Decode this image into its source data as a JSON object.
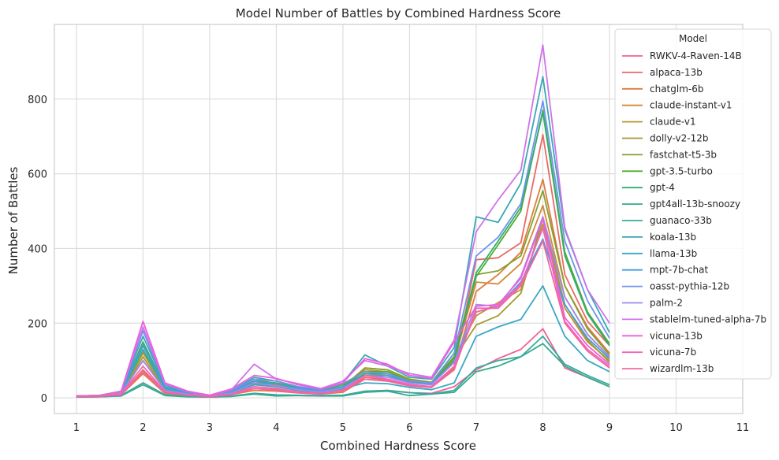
{
  "chart_data": {
    "type": "line",
    "title": "Model Number of Battles by Combined Hardness Score",
    "xlabel": "Combined Hardness Score",
    "ylabel": "Number of Battles",
    "xlim": [
      0.67,
      11.0
    ],
    "ylim": [
      -42,
      1000
    ],
    "xticks": [
      1,
      2,
      3,
      4,
      5,
      6,
      7,
      8,
      9,
      10,
      11
    ],
    "yticks": [
      0,
      200,
      400,
      600,
      800
    ],
    "grid": true,
    "legend": {
      "title": "Model",
      "placement": "top-right"
    },
    "x": [
      1,
      1.33,
      1.67,
      2,
      2.33,
      2.67,
      3,
      3.33,
      3.67,
      4,
      4.33,
      4.67,
      5,
      5.33,
      5.67,
      6,
      6.33,
      6.67,
      7,
      7.33,
      7.67,
      8,
      8.33,
      8.67,
      9
    ],
    "series": [
      {
        "name": "RWKV-4-Raven-14B",
        "color": "#f0628e",
        "values": [
          2,
          3,
          5,
          40,
          8,
          4,
          2,
          4,
          12,
          8,
          6,
          5,
          6,
          18,
          20,
          14,
          12,
          30,
          75,
          105,
          130,
          185,
          80,
          55,
          30
        ]
      },
      {
        "name": "alpaca-13b",
        "color": "#ea6a62",
        "values": [
          3,
          4,
          8,
          75,
          15,
          8,
          4,
          10,
          25,
          22,
          15,
          12,
          18,
          55,
          48,
          35,
          30,
          85,
          370,
          375,
          415,
          705,
          330,
          205,
          140
        ]
      },
      {
        "name": "chatglm-6b",
        "color": "#e07a3c",
        "values": [
          3,
          4,
          8,
          65,
          12,
          7,
          4,
          9,
          20,
          18,
          13,
          10,
          15,
          50,
          45,
          32,
          28,
          80,
          285,
          330,
          390,
          585,
          300,
          190,
          120
        ]
      },
      {
        "name": "claude-instant-v1",
        "color": "#d38933",
        "values": [
          3,
          4,
          10,
          100,
          20,
          10,
          4,
          12,
          35,
          30,
          20,
          15,
          22,
          65,
          60,
          42,
          36,
          100,
          310,
          305,
          360,
          515,
          270,
          170,
          110
        ]
      },
      {
        "name": "claude-v1",
        "color": "#bf9530",
        "values": [
          4,
          5,
          12,
          120,
          25,
          12,
          5,
          15,
          45,
          35,
          22,
          16,
          25,
          75,
          70,
          48,
          40,
          110,
          220,
          255,
          290,
          465,
          240,
          150,
          100
        ]
      },
      {
        "name": "dolly-v2-12b",
        "color": "#a29b2f",
        "values": [
          3,
          4,
          10,
          110,
          22,
          10,
          4,
          12,
          38,
          30,
          20,
          14,
          24,
          80,
          75,
          50,
          40,
          105,
          195,
          220,
          280,
          480,
          250,
          155,
          95
        ]
      },
      {
        "name": "fastchat-t5-3b",
        "color": "#84a12f",
        "values": [
          4,
          5,
          12,
          125,
          25,
          12,
          5,
          15,
          50,
          38,
          25,
          18,
          30,
          80,
          75,
          50,
          42,
          120,
          330,
          340,
          380,
          555,
          300,
          185,
          115
        ]
      },
      {
        "name": "gpt-3.5-turbo",
        "color": "#4fac2f",
        "values": [
          5,
          6,
          15,
          150,
          30,
          14,
          6,
          18,
          45,
          40,
          28,
          20,
          35,
          70,
          70,
          45,
          40,
          110,
          325,
          410,
          500,
          770,
          390,
          230,
          145
        ]
      },
      {
        "name": "gpt-4",
        "color": "#32ae6e",
        "values": [
          5,
          6,
          15,
          140,
          28,
          13,
          5,
          16,
          40,
          38,
          26,
          18,
          30,
          65,
          65,
          42,
          38,
          100,
          335,
          420,
          510,
          765,
          380,
          225,
          140
        ]
      },
      {
        "name": "gpt4all-13b-snoozy",
        "color": "#34ab8c",
        "values": [
          2,
          3,
          5,
          35,
          6,
          3,
          2,
          4,
          10,
          5,
          6,
          5,
          5,
          15,
          18,
          6,
          10,
          15,
          70,
          85,
          110,
          145,
          85,
          55,
          30
        ]
      },
      {
        "name": "guanaco-33b",
        "color": "#36a9a1",
        "values": [
          2,
          3,
          6,
          40,
          8,
          4,
          2,
          5,
          12,
          8,
          7,
          6,
          7,
          18,
          20,
          14,
          10,
          20,
          80,
          100,
          110,
          165,
          90,
          60,
          35
        ]
      },
      {
        "name": "koala-13b",
        "color": "#38a8b3",
        "values": [
          5,
          6,
          18,
          165,
          35,
          15,
          6,
          20,
          55,
          45,
          30,
          22,
          40,
          115,
          85,
          55,
          50,
          135,
          485,
          470,
          575,
          860,
          450,
          290,
          175
        ]
      },
      {
        "name": "llama-13b",
        "color": "#3aa7c4",
        "values": [
          4,
          5,
          12,
          130,
          25,
          12,
          5,
          14,
          35,
          30,
          20,
          15,
          25,
          40,
          38,
          28,
          22,
          40,
          165,
          190,
          210,
          300,
          165,
          100,
          70
        ]
      },
      {
        "name": "mpt-7b-chat",
        "color": "#3e9fe0",
        "values": [
          4,
          5,
          14,
          145,
          28,
          13,
          5,
          16,
          45,
          38,
          25,
          18,
          30,
          60,
          60,
          40,
          36,
          95,
          230,
          245,
          310,
          425,
          250,
          160,
          105
        ]
      },
      {
        "name": "oasst-pythia-12b",
        "color": "#6f93ee",
        "values": [
          5,
          6,
          16,
          180,
          35,
          16,
          6,
          20,
          50,
          45,
          30,
          22,
          38,
          70,
          65,
          45,
          40,
          120,
          380,
          430,
          520,
          795,
          420,
          260,
          160
        ]
      },
      {
        "name": "palm-2",
        "color": "#9f88ed",
        "values": [
          4,
          5,
          12,
          100,
          20,
          10,
          4,
          13,
          40,
          32,
          22,
          16,
          26,
          60,
          55,
          40,
          35,
          95,
          250,
          245,
          325,
          485,
          270,
          170,
          110
        ]
      },
      {
        "name": "stablelm-tuned-alpha-7b",
        "color": "#cf72ec",
        "values": [
          5,
          6,
          15,
          190,
          38,
          17,
          6,
          22,
          90,
          50,
          38,
          25,
          45,
          100,
          85,
          65,
          55,
          155,
          445,
          530,
          610,
          945,
          455,
          290,
          200
        ]
      },
      {
        "name": "vicuna-13b",
        "color": "#ec5fdd",
        "values": [
          5,
          6,
          17,
          205,
          40,
          18,
          7,
          24,
          60,
          52,
          35,
          24,
          40,
          105,
          90,
          60,
          52,
          150,
          245,
          250,
          320,
          480,
          215,
          140,
          90
        ]
      },
      {
        "name": "vicuna-7b",
        "color": "#f264bd",
        "values": [
          3,
          4,
          10,
          85,
          16,
          8,
          4,
          10,
          30,
          25,
          16,
          12,
          20,
          60,
          50,
          36,
          30,
          85,
          230,
          245,
          305,
          455,
          205,
          130,
          85
        ]
      },
      {
        "name": "wizardlm-13b",
        "color": "#f066a0",
        "values": [
          3,
          4,
          8,
          70,
          14,
          7,
          3,
          9,
          25,
          20,
          14,
          10,
          18,
          50,
          45,
          32,
          28,
          75,
          240,
          240,
          300,
          420,
          200,
          125,
          80
        ]
      }
    ]
  }
}
